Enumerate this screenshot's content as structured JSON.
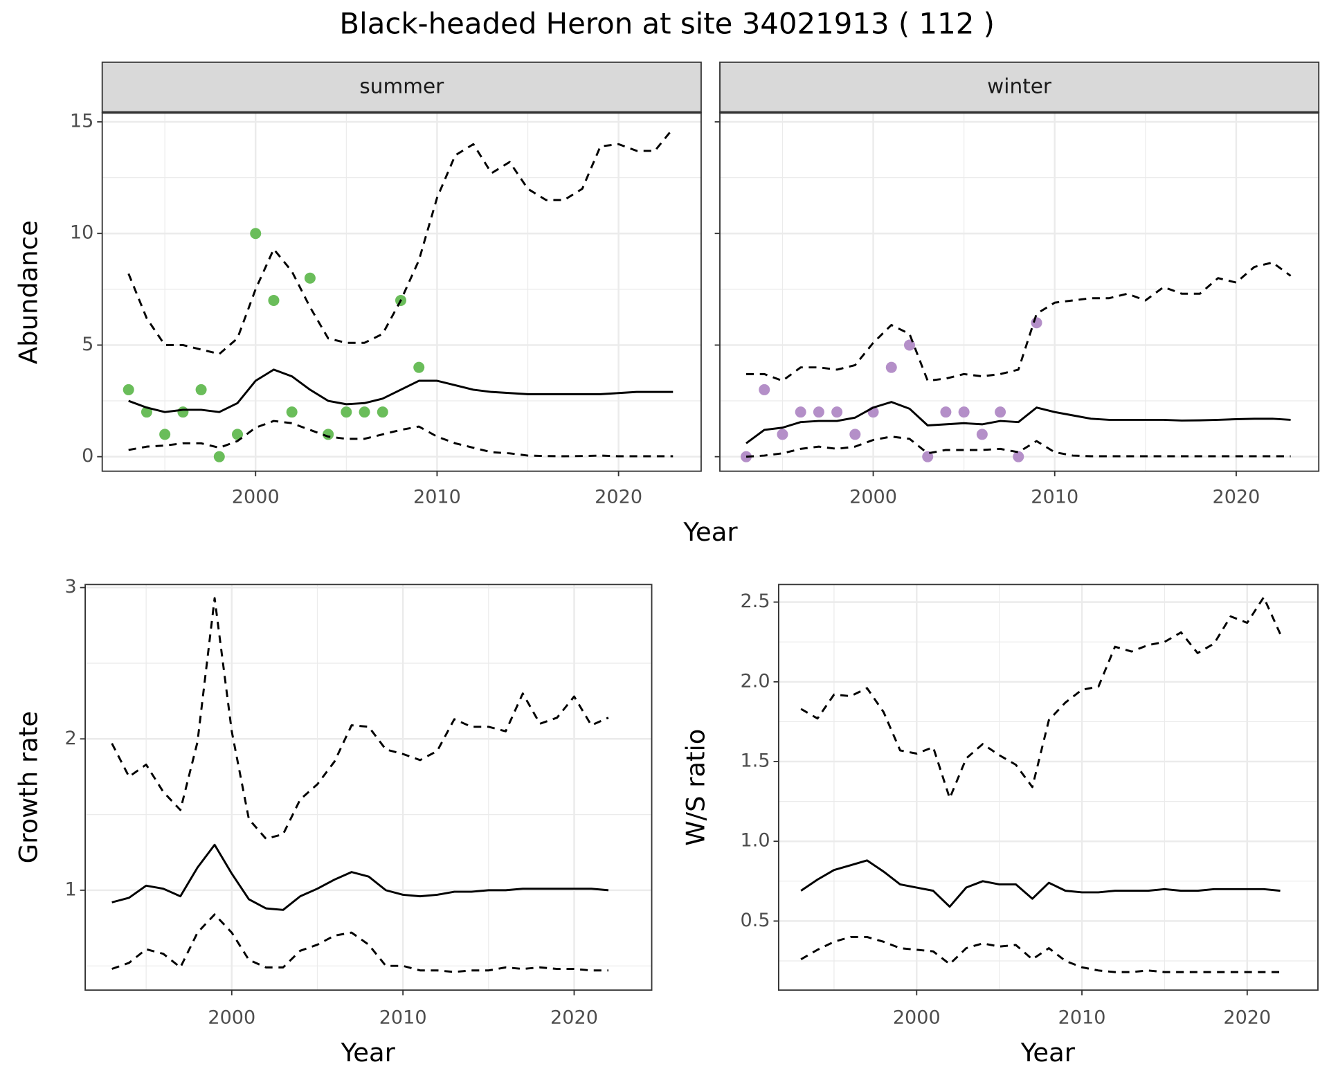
{
  "title": "Black-headed Heron at site 34021913 ( 112 )",
  "chart_data": [
    {
      "type": "line",
      "facet": "summer",
      "ylabel": "Abundance",
      "xlabel": "Year",
      "xlim": [
        1991.55,
        2024.55
      ],
      "xticks": [
        2000,
        2010,
        2020
      ],
      "ylim": [
        -0.65,
        15.42
      ],
      "yticks": [
        0,
        5,
        10,
        15
      ],
      "grid": true,
      "show_ytick_labels": true,
      "x": [
        1993,
        1994,
        1995,
        1996,
        1997,
        1998,
        1999,
        2000,
        2001,
        2002,
        2003,
        2004,
        2005,
        2006,
        2007,
        2008,
        2009,
        2010,
        2011,
        2012,
        2013,
        2014,
        2015,
        2016,
        2017,
        2018,
        2019,
        2020,
        2021,
        2022,
        2023
      ],
      "series": [
        {
          "style": "points",
          "color": "#6abd5a",
          "values": [
            3,
            2,
            1,
            2,
            3,
            0,
            1,
            10,
            7,
            2,
            8,
            1,
            2,
            2,
            2,
            7,
            4,
            null,
            null,
            null,
            null,
            null,
            null,
            null,
            null,
            null,
            null,
            null,
            null,
            null,
            null
          ]
        },
        {
          "style": "solid",
          "color": "#000000",
          "values": [
            2.5,
            2.2,
            2.0,
            2.1,
            2.1,
            2.0,
            2.4,
            3.4,
            3.9,
            3.6,
            3.0,
            2.5,
            2.35,
            2.4,
            2.6,
            3.0,
            3.4,
            3.4,
            3.2,
            3.0,
            2.9,
            2.85,
            2.8,
            2.8,
            2.8,
            2.8,
            2.8,
            2.85,
            2.9,
            2.9,
            2.9
          ]
        },
        {
          "style": "dashed",
          "color": "#000000",
          "values": [
            8.2,
            6.2,
            5.0,
            5.0,
            4.8,
            4.6,
            5.3,
            7.5,
            9.3,
            8.3,
            6.7,
            5.3,
            5.1,
            5.1,
            5.5,
            7.0,
            8.8,
            11.6,
            13.5,
            14.0,
            12.7,
            13.2,
            12.0,
            11.5,
            11.5,
            12.0,
            13.9,
            14.0,
            13.7,
            13.7,
            14.7
          ]
        },
        {
          "style": "dashed",
          "color": "#000000",
          "values": [
            0.3,
            0.45,
            0.5,
            0.6,
            0.6,
            0.4,
            0.7,
            1.3,
            1.6,
            1.5,
            1.2,
            0.9,
            0.8,
            0.8,
            1.0,
            1.2,
            1.35,
            0.9,
            0.6,
            0.4,
            0.2,
            0.15,
            0.05,
            0.03,
            0.02,
            0.03,
            0.05,
            0.02,
            0.02,
            0.02,
            0.02
          ]
        }
      ]
    },
    {
      "type": "line",
      "facet": "winter",
      "xlim": [
        1991.55,
        2024.55
      ],
      "xticks": [
        2000,
        2010,
        2020
      ],
      "ylim": [
        -0.65,
        15.42
      ],
      "yticks": [
        0,
        5,
        10,
        15
      ],
      "grid": true,
      "show_ytick_labels": false,
      "x": [
        1993,
        1994,
        1995,
        1996,
        1997,
        1998,
        1999,
        2000,
        2001,
        2002,
        2003,
        2004,
        2005,
        2006,
        2007,
        2008,
        2009,
        2010,
        2011,
        2012,
        2013,
        2014,
        2015,
        2016,
        2017,
        2018,
        2019,
        2020,
        2021,
        2022,
        2023
      ],
      "series": [
        {
          "style": "points",
          "color": "#b48fc8",
          "values": [
            0,
            3,
            1,
            2,
            2,
            2,
            1,
            2,
            4,
            5,
            0,
            2,
            2,
            1,
            2,
            0,
            6,
            null,
            null,
            null,
            null,
            null,
            null,
            null,
            null,
            null,
            null,
            null,
            null,
            null,
            null
          ]
        },
        {
          "style": "solid",
          "color": "#000000",
          "values": [
            0.6,
            1.2,
            1.3,
            1.55,
            1.6,
            1.6,
            1.75,
            2.2,
            2.45,
            2.15,
            1.4,
            1.45,
            1.5,
            1.45,
            1.6,
            1.55,
            2.2,
            2.0,
            1.85,
            1.7,
            1.65,
            1.65,
            1.65,
            1.65,
            1.62,
            1.63,
            1.65,
            1.68,
            1.7,
            1.7,
            1.65
          ]
        },
        {
          "style": "dashed",
          "color": "#000000",
          "values": [
            3.7,
            3.7,
            3.4,
            4.0,
            4.0,
            3.9,
            4.1,
            5.1,
            5.9,
            5.5,
            3.4,
            3.5,
            3.7,
            3.6,
            3.7,
            3.9,
            6.4,
            6.9,
            7.0,
            7.1,
            7.1,
            7.3,
            7.0,
            7.6,
            7.3,
            7.3,
            8.0,
            7.8,
            8.5,
            8.7,
            8.1
          ]
        },
        {
          "style": "dashed",
          "color": "#000000",
          "values": [
            0.0,
            0.05,
            0.15,
            0.35,
            0.45,
            0.35,
            0.45,
            0.75,
            0.9,
            0.8,
            0.15,
            0.3,
            0.3,
            0.3,
            0.35,
            0.2,
            0.7,
            0.2,
            0.05,
            0.02,
            0.02,
            0.02,
            0.02,
            0.02,
            0.02,
            0.02,
            0.02,
            0.02,
            0.02,
            0.02,
            0.02
          ]
        }
      ]
    },
    {
      "type": "line",
      "ylabel": "Growth rate",
      "xlabel": "Year",
      "xlim": [
        1991.44,
        2024.53
      ],
      "xticks": [
        2000,
        2010,
        2020
      ],
      "ylim": [
        0.34,
        3.02
      ],
      "yticks": [
        1,
        2,
        3
      ],
      "grid": true,
      "show_ytick_labels": true,
      "x": [
        1993,
        1994,
        1995,
        1996,
        1997,
        1998,
        1999,
        2000,
        2001,
        2002,
        2003,
        2004,
        2005,
        2006,
        2007,
        2008,
        2009,
        2010,
        2011,
        2012,
        2013,
        2014,
        2015,
        2016,
        2017,
        2018,
        2019,
        2020,
        2021,
        2022
      ],
      "series": [
        {
          "style": "solid",
          "color": "#000000",
          "values": [
            0.92,
            0.95,
            1.03,
            1.01,
            0.96,
            1.15,
            1.3,
            1.11,
            0.94,
            0.88,
            0.87,
            0.96,
            1.01,
            1.07,
            1.12,
            1.09,
            1.0,
            0.97,
            0.96,
            0.97,
            0.99,
            0.99,
            1.0,
            1.0,
            1.01,
            1.01,
            1.01,
            1.01,
            1.01,
            1.0
          ]
        },
        {
          "style": "dashed",
          "color": "#000000",
          "values": [
            1.97,
            1.75,
            1.83,
            1.65,
            1.53,
            1.98,
            2.93,
            2.05,
            1.47,
            1.34,
            1.37,
            1.6,
            1.7,
            1.85,
            2.09,
            2.08,
            1.93,
            1.9,
            1.86,
            1.92,
            2.13,
            2.08,
            2.08,
            2.05,
            2.3,
            2.1,
            2.14,
            2.28,
            2.09,
            2.14
          ]
        },
        {
          "style": "dashed",
          "color": "#000000",
          "values": [
            0.48,
            0.52,
            0.61,
            0.58,
            0.49,
            0.72,
            0.84,
            0.72,
            0.54,
            0.49,
            0.49,
            0.6,
            0.64,
            0.7,
            0.72,
            0.64,
            0.5,
            0.5,
            0.47,
            0.47,
            0.46,
            0.47,
            0.47,
            0.49,
            0.48,
            0.49,
            0.48,
            0.48,
            0.47,
            0.47
          ]
        }
      ]
    },
    {
      "type": "line",
      "ylabel": "W/S ratio",
      "xlabel": "Year",
      "xlim": [
        1991.65,
        2024.28
      ],
      "xticks": [
        2000,
        2010,
        2020
      ],
      "ylim": [
        0.067,
        2.61
      ],
      "yticks": [
        0.5,
        {
          "value": 1,
          "label": "1.0"
        },
        1.5,
        {
          "value": 2,
          "label": "2.0"
        },
        2.5
      ],
      "grid": true,
      "show_ytick_labels": true,
      "x": [
        1993,
        1994,
        1995,
        1996,
        1997,
        1998,
        1999,
        2000,
        2001,
        2002,
        2003,
        2004,
        2005,
        2006,
        2007,
        2008,
        2009,
        2010,
        2011,
        2012,
        2013,
        2014,
        2015,
        2016,
        2017,
        2018,
        2019,
        2020,
        2021,
        2022
      ],
      "series": [
        {
          "style": "solid",
          "color": "#000000",
          "values": [
            0.69,
            0.76,
            0.82,
            0.85,
            0.88,
            0.81,
            0.73,
            0.71,
            0.69,
            0.59,
            0.71,
            0.75,
            0.73,
            0.73,
            0.64,
            0.74,
            0.69,
            0.68,
            0.68,
            0.69,
            0.69,
            0.69,
            0.7,
            0.69,
            0.69,
            0.7,
            0.7,
            0.7,
            0.7,
            0.69
          ]
        },
        {
          "style": "dashed",
          "color": "#000000",
          "values": [
            1.83,
            1.77,
            1.92,
            1.91,
            1.96,
            1.81,
            1.57,
            1.55,
            1.59,
            1.27,
            1.52,
            1.61,
            1.54,
            1.48,
            1.34,
            1.76,
            1.87,
            1.95,
            1.97,
            2.22,
            2.19,
            2.23,
            2.25,
            2.31,
            2.18,
            2.24,
            2.41,
            2.37,
            2.53,
            2.3
          ]
        },
        {
          "style": "dashed",
          "color": "#000000",
          "values": [
            0.26,
            0.32,
            0.37,
            0.4,
            0.4,
            0.37,
            0.33,
            0.32,
            0.31,
            0.23,
            0.33,
            0.36,
            0.34,
            0.35,
            0.26,
            0.33,
            0.25,
            0.21,
            0.19,
            0.18,
            0.18,
            0.19,
            0.18,
            0.18,
            0.18,
            0.18,
            0.18,
            0.18,
            0.18,
            0.18
          ]
        }
      ]
    }
  ]
}
